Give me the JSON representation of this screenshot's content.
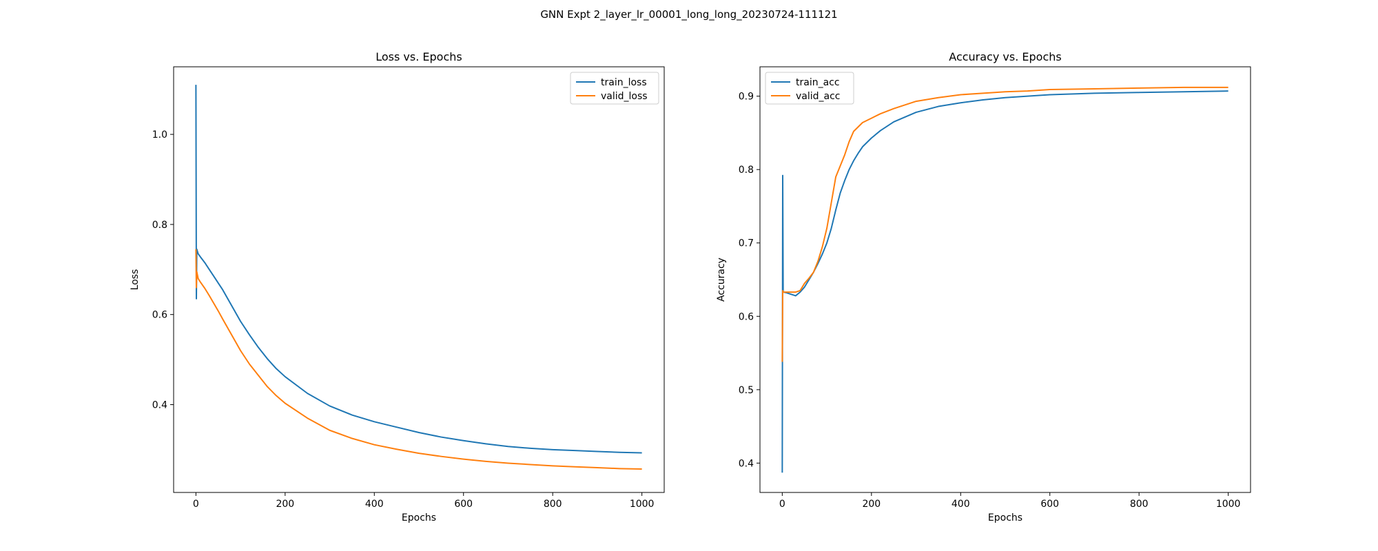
{
  "figure": {
    "suptitle": "GNN Expt 2_layer_lr_00001_long_long_20230724-111121"
  },
  "chart_data": [
    {
      "type": "line",
      "title": "Loss vs. Epochs",
      "xlabel": "Epochs",
      "ylabel": "Loss",
      "xlim": [
        -50,
        1050
      ],
      "ylim": [
        0.205,
        1.15
      ],
      "xticks": [
        0,
        200,
        400,
        600,
        800,
        1000
      ],
      "yticks": [
        0.4,
        0.6,
        0.8,
        1.0
      ],
      "ytick_labels": [
        "0.4",
        "0.6",
        "0.8",
        "1.0"
      ],
      "legend": "top-right",
      "grid": false,
      "series": [
        {
          "name": "train_loss",
          "color": "#1f77b4",
          "x": [
            0,
            1,
            2,
            5,
            10,
            20,
            30,
            40,
            50,
            60,
            80,
            100,
            120,
            140,
            160,
            180,
            200,
            250,
            300,
            350,
            400,
            450,
            500,
            550,
            600,
            650,
            700,
            750,
            800,
            850,
            900,
            950,
            1000
          ],
          "y": [
            1.11,
            0.635,
            0.745,
            0.735,
            0.728,
            0.715,
            0.7,
            0.685,
            0.67,
            0.655,
            0.62,
            0.585,
            0.555,
            0.527,
            0.502,
            0.48,
            0.462,
            0.425,
            0.397,
            0.377,
            0.362,
            0.35,
            0.338,
            0.328,
            0.32,
            0.313,
            0.307,
            0.303,
            0.3,
            0.298,
            0.296,
            0.294,
            0.293
          ]
        },
        {
          "name": "valid_loss",
          "color": "#ff7f0e",
          "x": [
            0,
            1,
            2,
            5,
            10,
            20,
            30,
            40,
            50,
            60,
            80,
            100,
            120,
            140,
            160,
            180,
            200,
            250,
            300,
            350,
            400,
            450,
            500,
            550,
            600,
            650,
            700,
            750,
            800,
            850,
            900,
            950,
            1000
          ],
          "y": [
            0.745,
            0.66,
            0.695,
            0.68,
            0.672,
            0.658,
            0.642,
            0.625,
            0.608,
            0.59,
            0.555,
            0.52,
            0.49,
            0.465,
            0.44,
            0.42,
            0.403,
            0.37,
            0.343,
            0.325,
            0.311,
            0.301,
            0.292,
            0.285,
            0.279,
            0.274,
            0.27,
            0.267,
            0.264,
            0.262,
            0.26,
            0.258,
            0.257
          ]
        }
      ]
    },
    {
      "type": "line",
      "title": "Accuracy vs. Epochs",
      "xlabel": "Epochs",
      "ylabel": "Accuracy",
      "xlim": [
        -50,
        1050
      ],
      "ylim": [
        0.36,
        0.94
      ],
      "xticks": [
        0,
        200,
        400,
        600,
        800,
        1000
      ],
      "yticks": [
        0.4,
        0.5,
        0.6,
        0.7,
        0.8,
        0.9
      ],
      "ytick_labels": [
        "0.4",
        "0.5",
        "0.6",
        "0.7",
        "0.8",
        "0.9"
      ],
      "legend": "top-left",
      "grid": false,
      "series": [
        {
          "name": "train_acc",
          "color": "#1f77b4",
          "x": [
            0,
            1,
            2,
            3,
            10,
            20,
            30,
            40,
            50,
            60,
            70,
            80,
            90,
            100,
            110,
            120,
            130,
            140,
            150,
            160,
            170,
            180,
            200,
            220,
            250,
            300,
            350,
            400,
            450,
            500,
            550,
            600,
            700,
            800,
            900,
            1000
          ],
          "y": [
            0.387,
            0.792,
            0.633,
            0.633,
            0.632,
            0.63,
            0.628,
            0.633,
            0.64,
            0.65,
            0.66,
            0.672,
            0.685,
            0.7,
            0.72,
            0.745,
            0.768,
            0.785,
            0.8,
            0.812,
            0.822,
            0.831,
            0.843,
            0.853,
            0.865,
            0.878,
            0.886,
            0.891,
            0.895,
            0.898,
            0.9,
            0.902,
            0.904,
            0.905,
            0.906,
            0.907
          ]
        },
        {
          "name": "valid_acc",
          "color": "#ff7f0e",
          "x": [
            0,
            1,
            2,
            3,
            10,
            20,
            30,
            40,
            50,
            60,
            70,
            80,
            90,
            100,
            110,
            120,
            130,
            140,
            150,
            160,
            170,
            180,
            200,
            220,
            250,
            300,
            350,
            400,
            450,
            500,
            550,
            600,
            700,
            800,
            900,
            1000
          ],
          "y": [
            0.538,
            0.635,
            0.633,
            0.633,
            0.633,
            0.633,
            0.633,
            0.635,
            0.645,
            0.652,
            0.66,
            0.675,
            0.695,
            0.72,
            0.755,
            0.79,
            0.805,
            0.82,
            0.838,
            0.852,
            0.858,
            0.864,
            0.87,
            0.876,
            0.883,
            0.893,
            0.898,
            0.902,
            0.904,
            0.906,
            0.907,
            0.909,
            0.91,
            0.911,
            0.912,
            0.912
          ]
        }
      ]
    }
  ]
}
